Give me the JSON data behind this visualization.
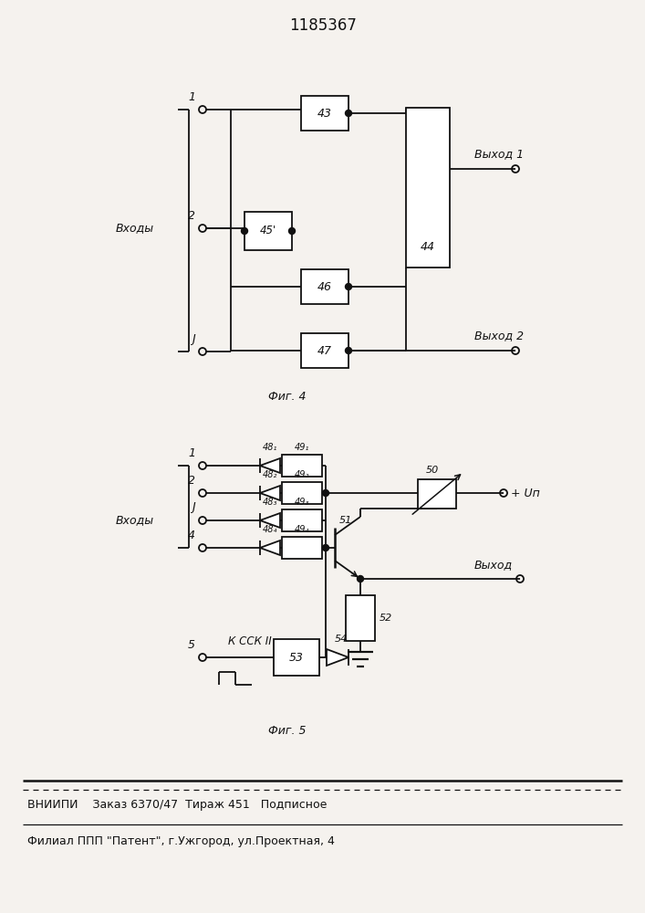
{
  "title": "1185367",
  "fig4_label": "Фиг. 4",
  "fig5_label": "Фиг. 5",
  "vhody_label": "Входы",
  "vyhod1_label": "Выход 1",
  "vyhod2_label": "Выход 2",
  "vyhod_label": "Выход",
  "vn_label": "+ Uп",
  "kcsck_label": "К ССК II",
  "footer1": "ВНИИПИ    Заказ 6370/47  Тираж 451   Подписное",
  "footer2": "Филиал ППП \"Патент\", г.Ужгород, ул.Проектная, 4",
  "bg_color": "#f5f2ee",
  "line_color": "#111111"
}
